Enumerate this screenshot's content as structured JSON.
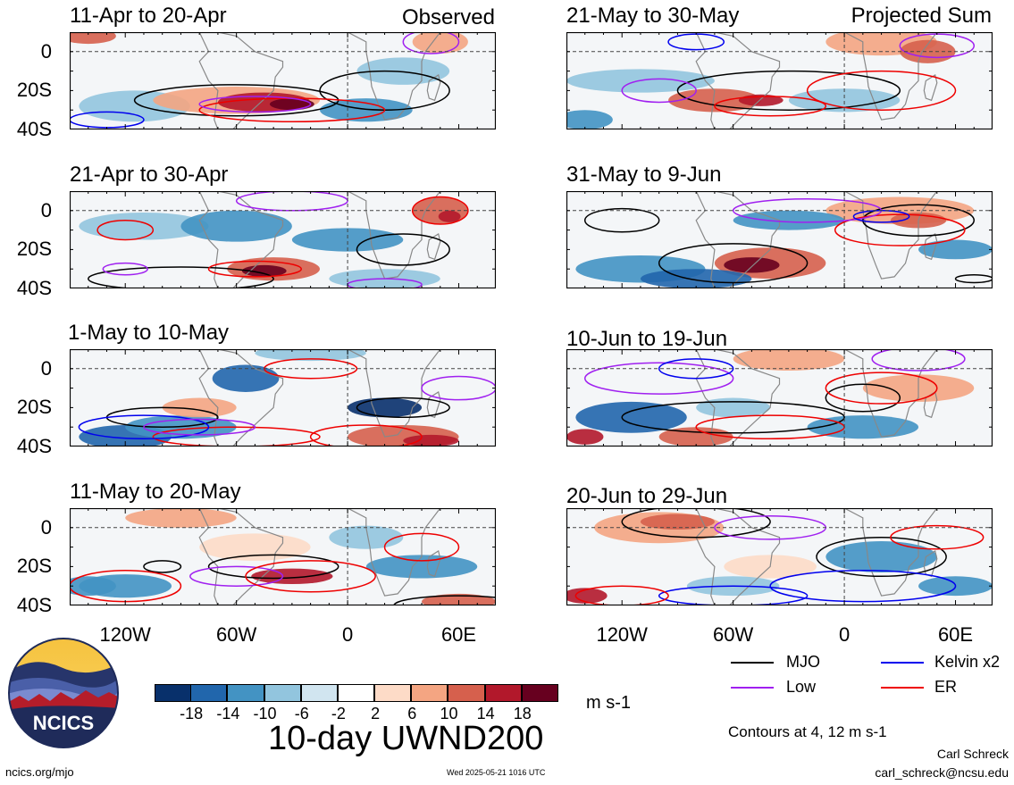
{
  "chart_data": {
    "type": "heatmap",
    "title": "10-day UWND200",
    "units": "m s-1",
    "columns": [
      "Observed",
      "Projected Sum"
    ],
    "panels": [
      {
        "column": "left",
        "period": "11-Apr to 20-Apr"
      },
      {
        "column": "left",
        "period": "21-Apr to 30-Apr"
      },
      {
        "column": "left",
        "period": "1-May to 10-May"
      },
      {
        "column": "left",
        "period": "11-May to 20-May"
      },
      {
        "column": "right",
        "period": "21-May to 30-May"
      },
      {
        "column": "right",
        "period": "31-May to 9-Jun"
      },
      {
        "column": "right",
        "period": "10-Jun to 19-Jun"
      },
      {
        "column": "right",
        "period": "20-Jun to 29-Jun"
      }
    ],
    "y_ticks": [
      "0",
      "20S",
      "40S"
    ],
    "x_ticks": [
      "120W",
      "60W",
      "0",
      "60E"
    ],
    "x_range_deg": [
      -150,
      80
    ],
    "y_range_deg": [
      -40,
      10
    ],
    "colorbar": {
      "ticks": [
        "-18",
        "-14",
        "-10",
        "-6",
        "-2",
        "2",
        "6",
        "10",
        "14",
        "18"
      ],
      "colors": [
        "#08306b",
        "#2166ac",
        "#4393c3",
        "#92c5de",
        "#d1e5f0",
        "#ffffff",
        "#fddbc7",
        "#f4a582",
        "#d6604d",
        "#b2182b",
        "#67001f"
      ]
    },
    "legend": [
      {
        "label": "MJO",
        "color": "#000000"
      },
      {
        "label": "Kelvin x2",
        "color": "#0000ee"
      },
      {
        "label": "Low",
        "color": "#a020f0"
      },
      {
        "label": "ER",
        "color": "#ee0000"
      }
    ],
    "contour_note": "Contours at 4, 12 m s-1"
  },
  "footer": {
    "left": "ncics.org/mjo",
    "timestamp": "Wed 2025-05-21 1016 UTC",
    "author": "Carl Schreck",
    "email": "carl_schreck@ncsu.edu",
    "logo_text": "NCICS"
  }
}
